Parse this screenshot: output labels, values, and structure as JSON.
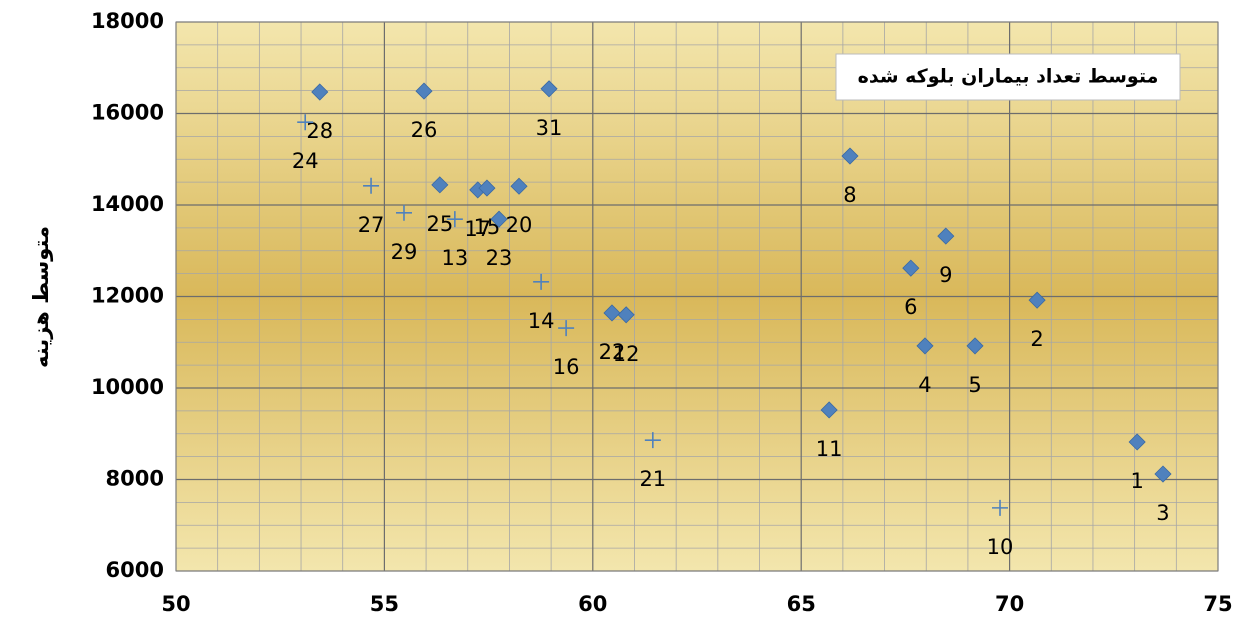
{
  "chart_data": {
    "type": "scatter",
    "title": "متوسط تعداد بیماران بلوکه شده",
    "y_label": "متوسط هزینه",
    "xlim": [
      50,
      75
    ],
    "xticks": [
      50,
      55,
      60,
      65,
      70,
      75
    ],
    "ylim": [
      6000,
      18000
    ],
    "yticks": [
      6000,
      8000,
      10000,
      12000,
      14000,
      16000,
      18000
    ],
    "grid": true,
    "minor_grid": true,
    "series": [
      {
        "marker": "diamond",
        "color": "#4f81bd",
        "labels": [
          "28",
          "26",
          "31",
          "8",
          "25",
          "17",
          "15",
          "20",
          "23",
          "9",
          "6",
          "2",
          "22",
          "12",
          "4",
          "5",
          "11",
          "1",
          "3"
        ],
        "x": [
          53.45,
          55.95,
          58.95,
          66.17,
          56.33,
          57.24,
          57.46,
          58.23,
          57.75,
          68.47,
          67.63,
          70.66,
          60.46,
          60.8,
          67.97,
          69.17,
          65.67,
          73.06,
          73.68
        ],
        "values": [
          16470,
          16490,
          16540,
          15070,
          14440,
          14330,
          14370,
          14410,
          13690,
          13320,
          12620,
          11920,
          11640,
          11600,
          10920,
          10920,
          9520,
          8820,
          8120
        ]
      },
      {
        "marker": "plus",
        "color": "#4f81bd",
        "labels": [
          "24",
          "27",
          "29",
          "13",
          "14",
          "16",
          "21",
          "10"
        ],
        "x": [
          53.1,
          54.68,
          55.47,
          56.69,
          58.76,
          59.36,
          61.44,
          69.77
        ],
        "values": [
          15810,
          14420,
          13830,
          13690,
          12320,
          11310,
          8860,
          7380
        ]
      }
    ]
  }
}
